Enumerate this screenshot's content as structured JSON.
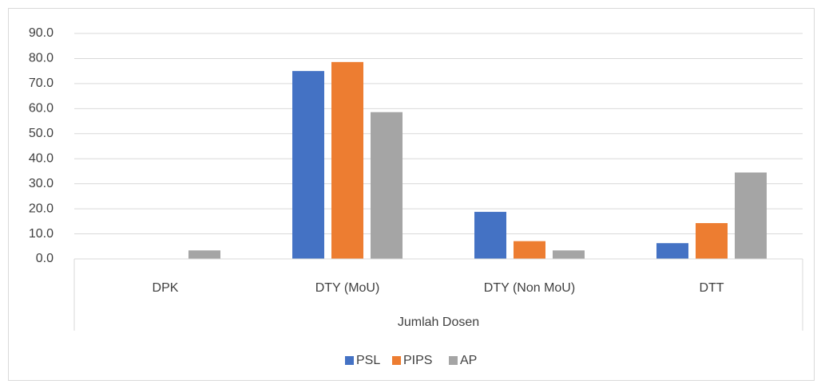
{
  "chart_data": {
    "type": "bar",
    "x_label": "Jumlah Dosen",
    "categories": [
      "DPK",
      "DTY (MoU)",
      "DTY (Non MoU)",
      "DTT"
    ],
    "series": [
      {
        "name": "PSL",
        "color": "#4472c4",
        "values": [
          0,
          75.0,
          18.8,
          6.3
        ]
      },
      {
        "name": "PIPS",
        "color": "#ed7d31",
        "values": [
          0,
          78.6,
          7.1,
          14.3
        ]
      },
      {
        "name": "AP",
        "color": "#a5a5a5",
        "values": [
          3.4,
          58.6,
          3.4,
          34.5
        ]
      }
    ],
    "ylim": [
      0,
      90
    ],
    "yticks": [
      {
        "value": 0,
        "label": "0.0"
      },
      {
        "value": 10,
        "label": "10.0"
      },
      {
        "value": 20,
        "label": "20.0"
      },
      {
        "value": 30,
        "label": "30.0"
      },
      {
        "value": 40,
        "label": "40.0"
      },
      {
        "value": 50,
        "label": "50.0"
      },
      {
        "value": 60,
        "label": "60.0"
      },
      {
        "value": 70,
        "label": "70.0"
      },
      {
        "value": 80,
        "label": "80.0"
      },
      {
        "value": 90,
        "label": "90.0"
      }
    ],
    "grid": true,
    "legend": "bottom"
  }
}
